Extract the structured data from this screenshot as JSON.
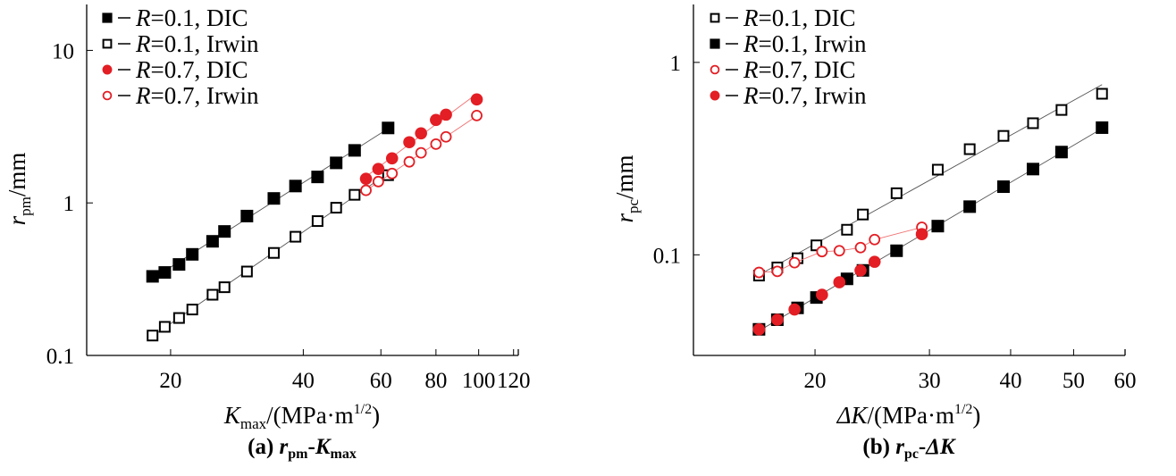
{
  "chart_data": [
    {
      "type": "scatter",
      "scale": "log-log",
      "panel_caption": {
        "prefix": "(a) ",
        "y_sym": "r",
        "y_sub": "pm",
        "dash": "-",
        "x_sym": "K",
        "x_sub": "max"
      },
      "ylabel": {
        "sym": "r",
        "sub": "pm",
        "rest": "/mm"
      },
      "xlabel": {
        "sym": "K",
        "sub": "max",
        "rest": "/(MPa·m",
        "sup": "1/2",
        "close": ")"
      },
      "xlim": [
        12.9,
        123
      ],
      "ylim": [
        0.1,
        20
      ],
      "xticks": [
        20,
        40,
        60,
        80,
        100,
        120
      ],
      "xtick_labels": [
        "20",
        "40",
        "60",
        "80",
        "100",
        "120"
      ],
      "yticks": [
        0.1,
        1,
        10
      ],
      "ytick_labels": [
        "0.1",
        "1",
        "10"
      ],
      "legend_position": "top-left",
      "series": [
        {
          "name": "R=0.1, DIC",
          "r": "R",
          "label": "=0.1, DIC",
          "marker": "square",
          "filled": true,
          "color": "#000000",
          "line": "fit",
          "x": [
            18.2,
            19.4,
            20.9,
            22.4,
            24.9,
            26.5,
            29.8,
            34.3,
            38.4,
            43.1,
            47.5,
            52.3,
            62.3
          ],
          "y": [
            0.33,
            0.35,
            0.395,
            0.46,
            0.56,
            0.65,
            0.82,
            1.07,
            1.29,
            1.48,
            1.83,
            2.21,
            3.1
          ]
        },
        {
          "name": "R=0.1, Irwin",
          "r": "R",
          "label": "=0.1, Irwin",
          "marker": "square",
          "filled": false,
          "color": "#000000",
          "line": "fit",
          "x": [
            18.2,
            19.4,
            20.9,
            22.4,
            24.9,
            26.5,
            29.8,
            34.3,
            38.4,
            43.1,
            47.5,
            52.3,
            62.3
          ],
          "y": [
            0.135,
            0.154,
            0.176,
            0.2,
            0.25,
            0.28,
            0.355,
            0.47,
            0.6,
            0.76,
            0.93,
            1.13,
            1.52
          ]
        },
        {
          "name": "R=0.7, DIC",
          "r": "R",
          "label": "=0.7, DIC",
          "marker": "circle",
          "filled": true,
          "color": "#e31e24",
          "line": "fit",
          "x": [
            55.5,
            59.2,
            63.6,
            69.6,
            74.0,
            80.0,
            84.3,
            99.0
          ],
          "y": [
            1.44,
            1.67,
            1.96,
            2.5,
            2.86,
            3.5,
            3.79,
            4.77
          ]
        },
        {
          "name": "R=0.7, Irwin",
          "r": "R",
          "label": "=0.7, Irwin",
          "marker": "circle",
          "filled": false,
          "color": "#e31e24",
          "line": "fit",
          "x": [
            55.5,
            59.2,
            63.6,
            69.6,
            74.0,
            80.0,
            84.3,
            99.0
          ],
          "y": [
            1.21,
            1.38,
            1.56,
            1.86,
            2.13,
            2.43,
            2.71,
            3.74
          ]
        }
      ]
    },
    {
      "type": "scatter",
      "scale": "log-log",
      "panel_caption": {
        "prefix": "(b) ",
        "y_sym": "r",
        "y_sub": "pc",
        "dash": "-",
        "x_sym": "ΔK",
        "x_sub": ""
      },
      "ylabel": {
        "sym": "r",
        "sub": "pc",
        "rest": "/mm"
      },
      "xlabel": {
        "sym": "ΔK",
        "sub": "",
        "rest": "/(MPa·m",
        "sup": "1/2",
        "close": ")"
      },
      "xlim": [
        13.0,
        60
      ],
      "ylim": [
        0.03,
        2.0
      ],
      "xticks": [
        20,
        30,
        40,
        50,
        60
      ],
      "xtick_labels": [
        "20",
        "30",
        "40",
        "50",
        "60"
      ],
      "yticks": [
        0.1,
        1
      ],
      "ytick_labels": [
        "0.1",
        "1"
      ],
      "legend_position": "top-left",
      "series": [
        {
          "name": "R=0.1, DIC",
          "r": "R",
          "label": "=0.1, DIC",
          "marker": "square",
          "filled": false,
          "color": "#000000",
          "line": "fit",
          "x": [
            16.4,
            17.5,
            18.8,
            20.1,
            22.4,
            23.7,
            26.7,
            30.9,
            34.6,
            39.0,
            43.3,
            47.9,
            55.3
          ],
          "y": [
            0.078,
            0.086,
            0.096,
            0.112,
            0.135,
            0.162,
            0.209,
            0.277,
            0.354,
            0.415,
            0.483,
            0.566,
            0.687
          ]
        },
        {
          "name": "R=0.1, Irwin",
          "r": "R",
          "label": "=0.1, Irwin",
          "marker": "square",
          "filled": true,
          "color": "#000000",
          "line": "fit",
          "x": [
            16.4,
            17.5,
            18.8,
            20.1,
            22.4,
            23.7,
            26.7,
            30.9,
            34.6,
            39.0,
            43.3,
            47.9,
            55.3
          ],
          "y": [
            0.041,
            0.046,
            0.053,
            0.06,
            0.075,
            0.083,
            0.105,
            0.141,
            0.178,
            0.226,
            0.279,
            0.342,
            0.458
          ]
        },
        {
          "name": "R=0.7, DIC",
          "r": "R",
          "label": "=0.7, DIC",
          "marker": "circle",
          "filled": false,
          "color": "#e31e24",
          "line": "connect",
          "x": [
            16.4,
            17.5,
            18.6,
            20.5,
            21.8,
            23.5,
            24.7,
            29.2
          ],
          "y": [
            0.081,
            0.082,
            0.091,
            0.104,
            0.105,
            0.109,
            0.12,
            0.139
          ]
        },
        {
          "name": "R=0.7, Irwin",
          "r": "R",
          "label": "=0.7, Irwin",
          "marker": "circle",
          "filled": true,
          "color": "#e31e24",
          "line": "none",
          "x": [
            16.4,
            17.5,
            18.6,
            20.5,
            21.8,
            23.5,
            24.7,
            29.2
          ],
          "y": [
            0.041,
            0.046,
            0.052,
            0.062,
            0.072,
            0.083,
            0.092,
            0.128
          ]
        }
      ]
    }
  ]
}
